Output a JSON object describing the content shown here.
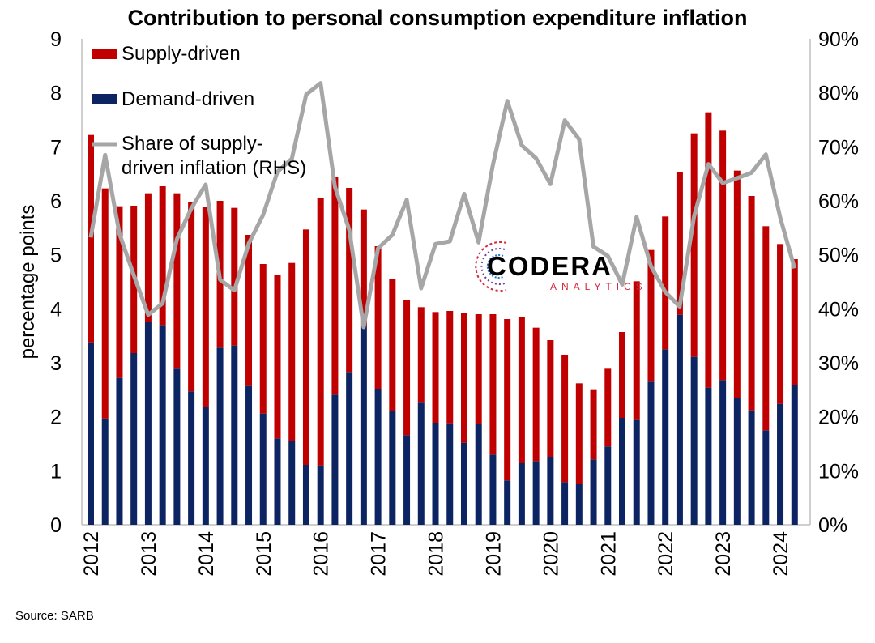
{
  "title": "Contribution to personal consumption expenditure inflation",
  "source": "Source: SARB",
  "logo": {
    "name": "CODERA",
    "sub": "ANALYTICS"
  },
  "colors": {
    "supply": "#c00000",
    "demand": "#0d2463",
    "share": "#a6a6a6"
  },
  "chart_data": {
    "type": "bar",
    "stacked": true,
    "ylabel": "percentage points",
    "ylim": [
      0,
      9
    ],
    "yticks": [
      0,
      1,
      2,
      3,
      4,
      5,
      6,
      7,
      8,
      9
    ],
    "y2lim": [
      0,
      0.9
    ],
    "y2ticks": [
      "0%",
      "10%",
      "20%",
      "30%",
      "40%",
      "50%",
      "60%",
      "70%",
      "80%",
      "90%"
    ],
    "year_labels": [
      "2012",
      "2013",
      "2014",
      "2015",
      "2016",
      "2017",
      "2018",
      "2019",
      "2020",
      "2021",
      "2022",
      "2023",
      "2024"
    ],
    "frequency": "quarterly",
    "first_period": "2012Q1",
    "legend": {
      "position": "top-left",
      "supply": "Supply-driven",
      "demand": "Demand-driven",
      "share": "Share of supply-driven inflation (RHS)"
    },
    "series": [
      {
        "name": "Demand-driven",
        "values": [
          3.38,
          1.97,
          2.72,
          3.18,
          3.75,
          3.7,
          2.89,
          2.47,
          2.18,
          3.28,
          3.32,
          2.57,
          2.06,
          1.6,
          1.56,
          1.11,
          1.1,
          2.41,
          2.83,
          3.7,
          2.52,
          2.11,
          1.66,
          2.26,
          1.89,
          1.88,
          1.52,
          1.86,
          1.3,
          0.82,
          1.14,
          1.18,
          1.26,
          0.79,
          0.75,
          1.21,
          1.45,
          1.98,
          1.94,
          2.65,
          3.25,
          3.89,
          3.11,
          2.54,
          2.68,
          2.35,
          2.12,
          1.75,
          2.24,
          2.58
        ]
      },
      {
        "name": "Supply-driven",
        "values": [
          3.84,
          4.26,
          3.18,
          2.73,
          2.39,
          2.57,
          3.25,
          3.5,
          3.71,
          2.72,
          2.55,
          2.8,
          2.77,
          3.02,
          3.29,
          4.36,
          4.95,
          4.04,
          3.41,
          2.14,
          2.64,
          2.44,
          2.51,
          1.77,
          2.05,
          2.08,
          2.4,
          2.04,
          2.6,
          2.99,
          2.7,
          2.47,
          2.16,
          2.36,
          1.87,
          1.3,
          1.44,
          1.59,
          2.57,
          2.44,
          2.46,
          2.64,
          4.14,
          5.1,
          4.62,
          4.21,
          3.97,
          3.78,
          2.96,
          2.34
        ]
      },
      {
        "name": "Share of supply-driven inflation (RHS)",
        "values": [
          0.532,
          0.685,
          0.539,
          0.462,
          0.389,
          0.41,
          0.529,
          0.586,
          0.63,
          0.454,
          0.434,
          0.521,
          0.574,
          0.654,
          0.678,
          0.797,
          0.818,
          0.626,
          0.546,
          0.366,
          0.512,
          0.537,
          0.602,
          0.438,
          0.52,
          0.525,
          0.613,
          0.523,
          0.667,
          0.785,
          0.703,
          0.679,
          0.631,
          0.749,
          0.714,
          0.515,
          0.498,
          0.445,
          0.57,
          0.479,
          0.431,
          0.404,
          0.571,
          0.668,
          0.633,
          0.642,
          0.652,
          0.686,
          0.569,
          0.475
        ]
      }
    ]
  }
}
